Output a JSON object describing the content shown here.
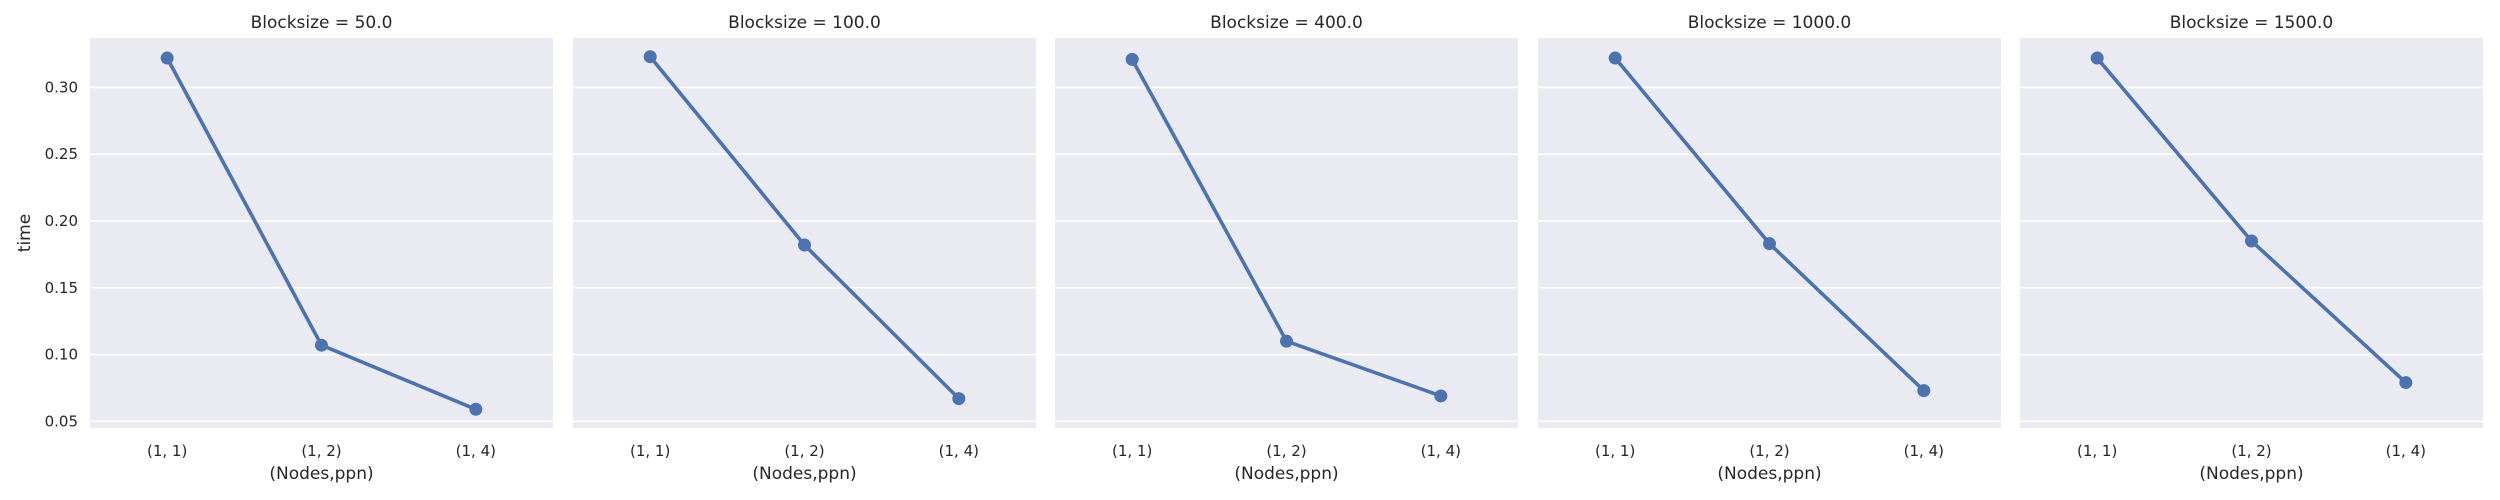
{
  "chart_data": {
    "type": "line",
    "ylabel": "time",
    "xlabel": "(Nodes,ppn)",
    "categories": [
      "(1, 1)",
      "(1, 2)",
      "(1, 4)"
    ],
    "ylim": [
      0.045,
      0.337
    ],
    "yticks": [
      "0.05",
      "0.10",
      "0.15",
      "0.20",
      "0.25",
      "0.30"
    ],
    "ytick_values": [
      0.05,
      0.1,
      0.15,
      0.2,
      0.25,
      0.3
    ],
    "grid": true,
    "series_color": "#4c72b0",
    "background_color": "#eaeaf2",
    "panels": [
      {
        "title": "Blocksize = 50.0",
        "values": [
          0.322,
          0.107,
          0.059
        ]
      },
      {
        "title": "Blocksize = 100.0",
        "values": [
          0.323,
          0.182,
          0.067
        ]
      },
      {
        "title": "Blocksize = 400.0",
        "values": [
          0.321,
          0.11,
          0.069
        ]
      },
      {
        "title": "Blocksize = 1000.0",
        "values": [
          0.322,
          0.183,
          0.073
        ]
      },
      {
        "title": "Blocksize = 1500.0",
        "values": [
          0.322,
          0.185,
          0.079
        ]
      }
    ]
  }
}
